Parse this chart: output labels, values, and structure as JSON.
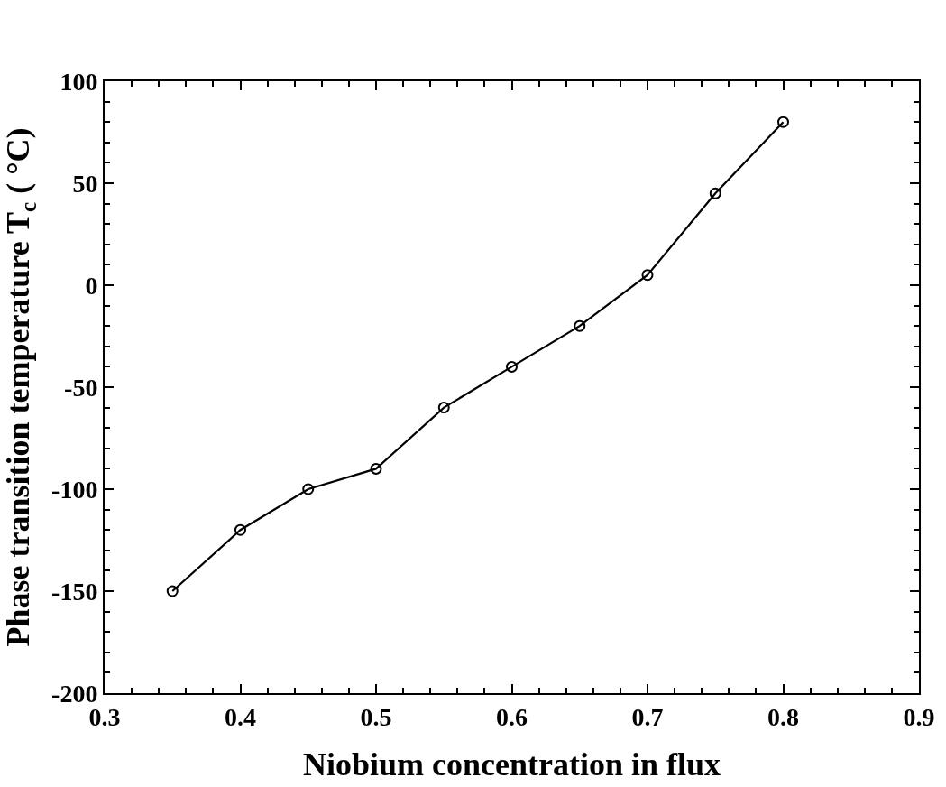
{
  "chart_data": {
    "type": "line",
    "xlabel": "Niobium concentration in flux",
    "ylabel": "Phase transition temperature T$_{c}$ ( °C)",
    "x": [
      0.35,
      0.4,
      0.45,
      0.5,
      0.55,
      0.6,
      0.65,
      0.7,
      0.75,
      0.8
    ],
    "series": [
      {
        "color": "#000000",
        "values": [
          -150,
          -120,
          -100,
          -90,
          -60,
          -40,
          -20,
          5,
          45,
          80
        ]
      }
    ],
    "xlim": [
      0.3,
      0.9
    ],
    "xticks": [
      0.3,
      0.4,
      0.5,
      0.6,
      0.7,
      0.8,
      0.9
    ],
    "ylim": [
      -200,
      100
    ],
    "yticks": [
      -200,
      -150,
      -100,
      -50,
      0,
      50,
      100
    ],
    "legend": false,
    "marker": "circle",
    "line_style": "solid"
  }
}
